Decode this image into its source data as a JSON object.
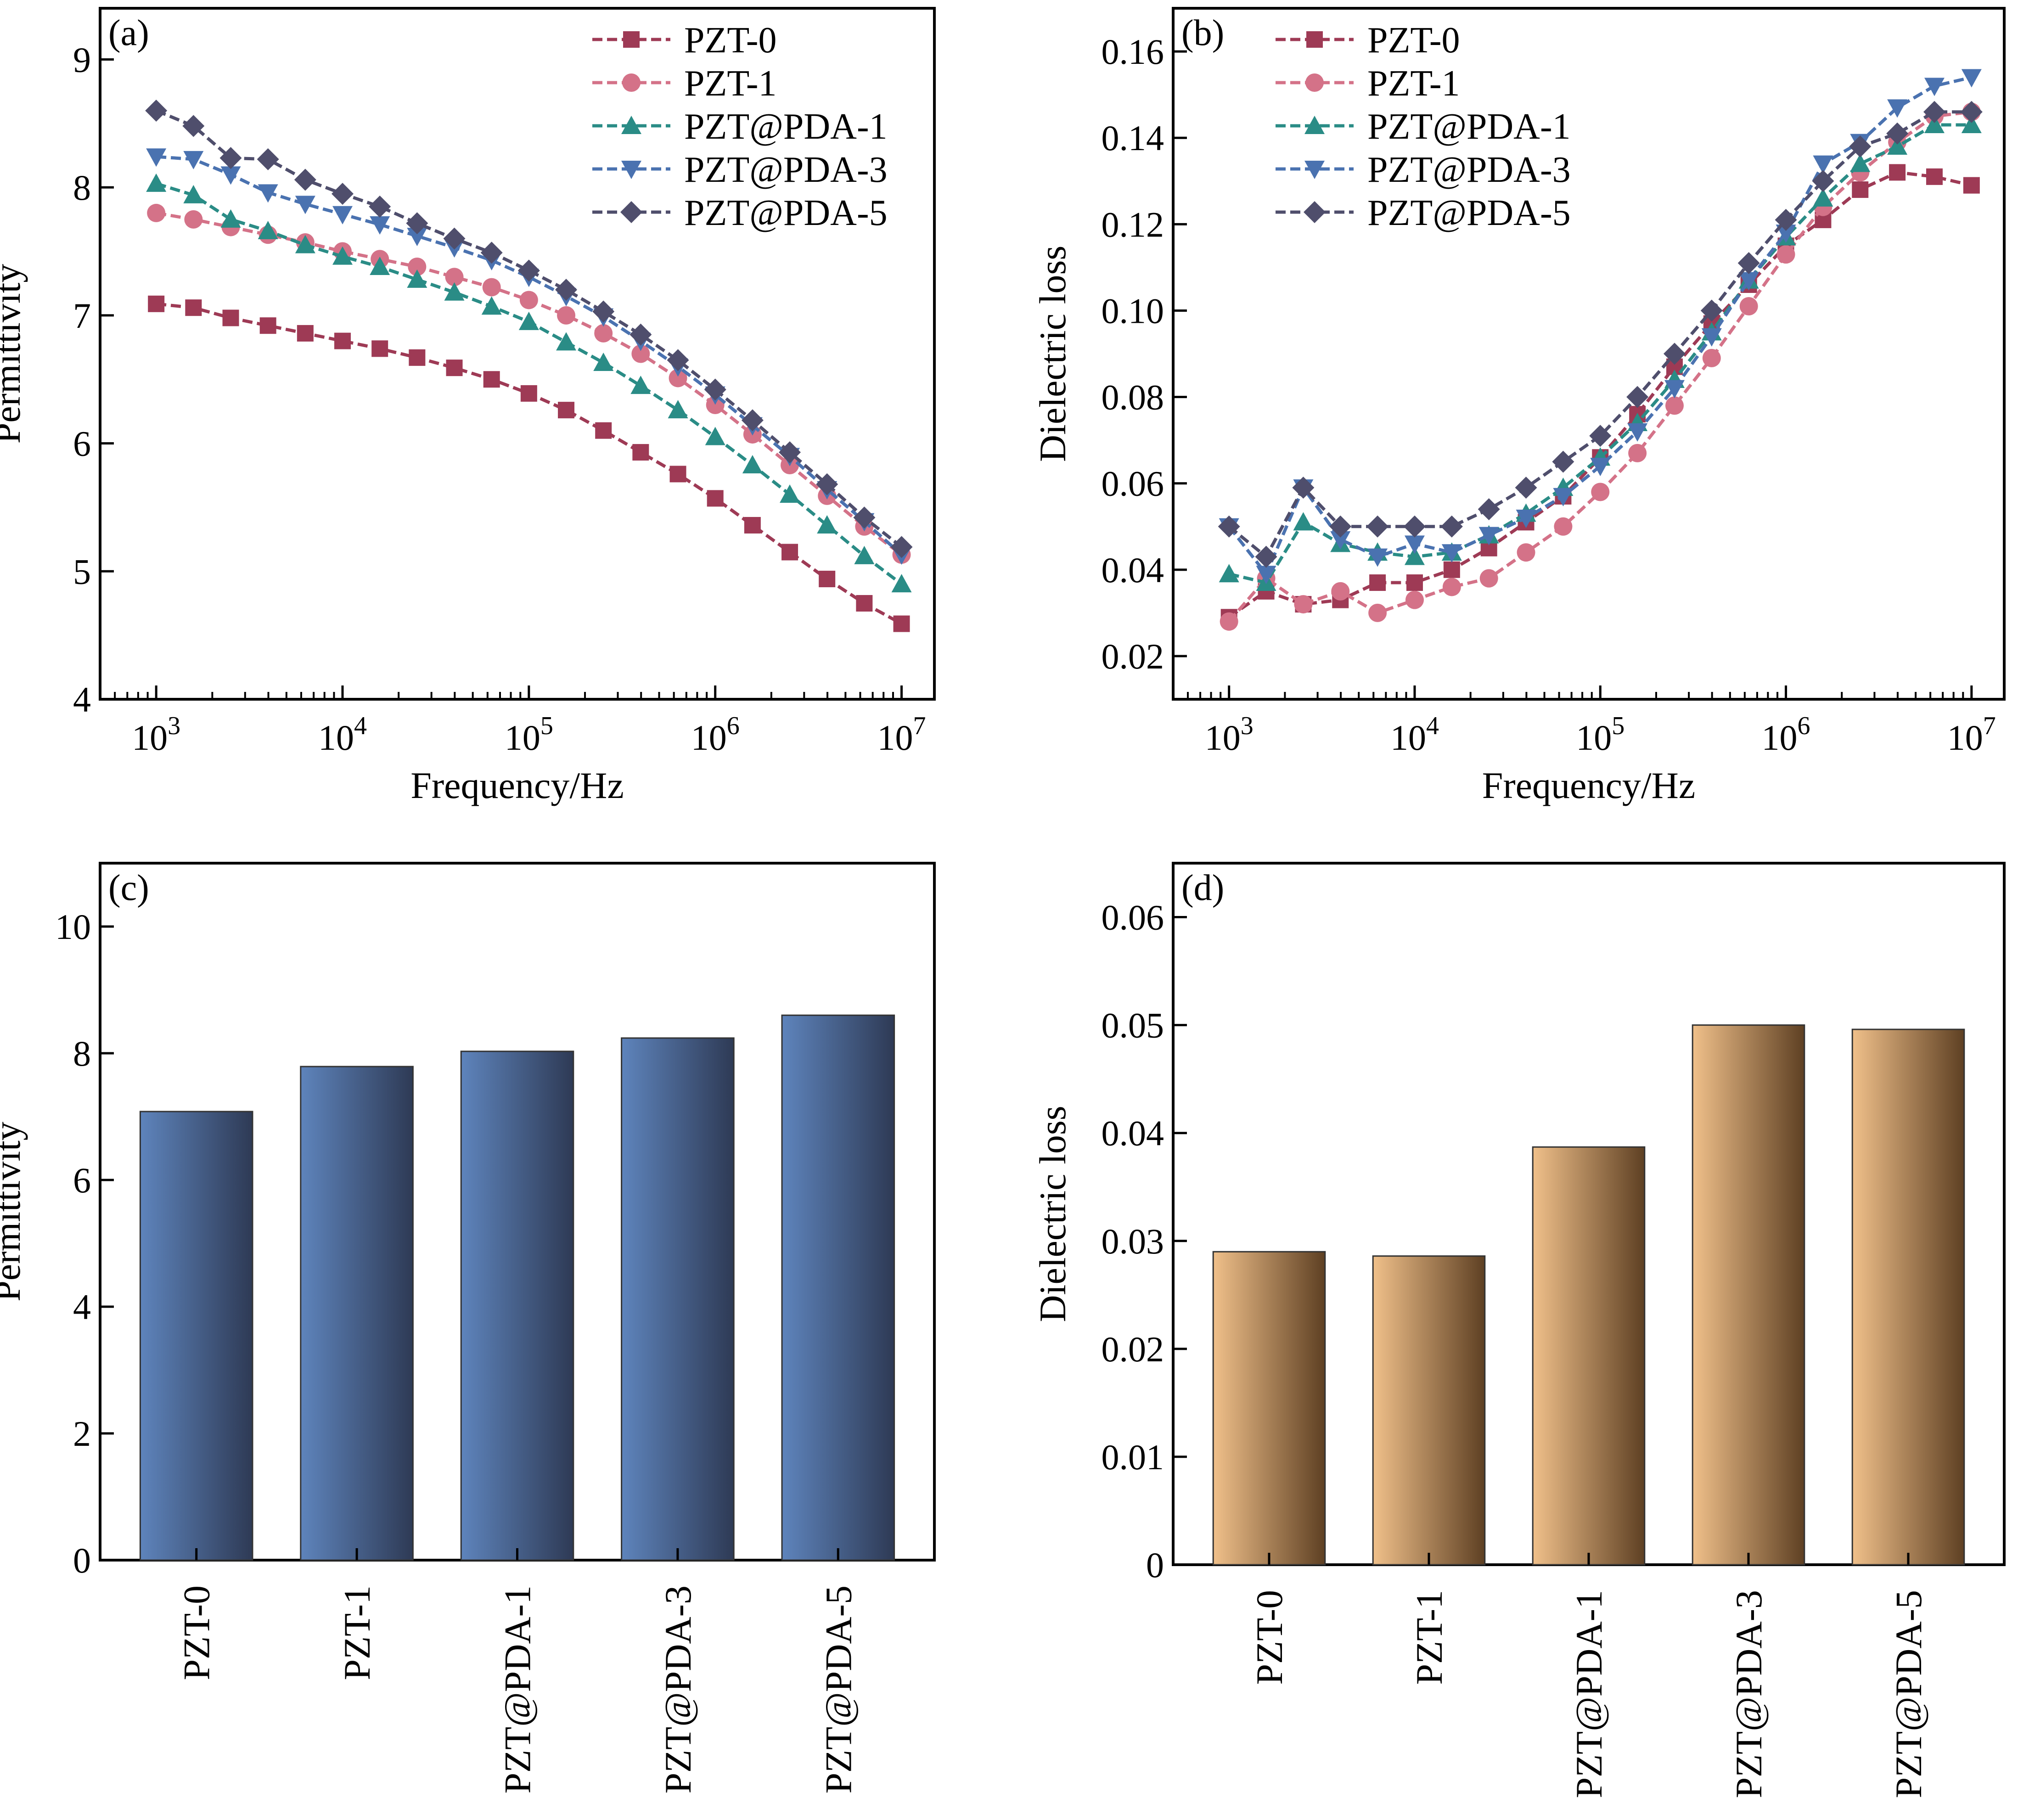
{
  "figure": {
    "panels": [
      "(a)",
      "(b)",
      "(c)",
      "(d)"
    ]
  },
  "colors": {
    "PZT-0": "#9e3a55",
    "PZT-1": "#d47288",
    "PZT@PDA-1": "#2a8c86",
    "PZT@PDA-3": "#4a72b0",
    "PZT@PDA-5": "#4f4e6c",
    "bar_blue_light": "#5e84bc",
    "bar_blue_dark": "#2e3a55",
    "bar_tan_light": "#f0c08a",
    "bar_tan_dark": "#5e4023"
  },
  "chart_data": [
    {
      "panel": "(a)",
      "type": "line",
      "xscale": "log",
      "xlabel": "Frequency/Hz",
      "ylabel": "Permittivity",
      "xlim": [
        500,
        15000000
      ],
      "ylim": [
        4,
        9.4
      ],
      "yticks": [
        4,
        5,
        6,
        7,
        8,
        9
      ],
      "xticks": [
        {
          "value": 1000,
          "base": "10",
          "exp": "3"
        },
        {
          "value": 10000,
          "base": "10",
          "exp": "4"
        },
        {
          "value": 100000,
          "base": "10",
          "exp": "5"
        },
        {
          "value": 1000000,
          "base": "10",
          "exp": "6"
        },
        {
          "value": 10000000,
          "base": "10",
          "exp": "7"
        }
      ],
      "legend_position": "top-right",
      "x": [
        1000,
        1585,
        2512,
        3981,
        6310,
        10000,
        15850,
        25120,
        39810,
        63100,
        100000,
        158500,
        251200,
        398100,
        631000,
        1000000,
        1585000,
        2512000,
        3981000,
        6310000,
        10000000
      ],
      "series": [
        {
          "name": "PZT-0",
          "marker": "square",
          "values": [
            7.09,
            7.06,
            6.98,
            6.92,
            6.86,
            6.8,
            6.74,
            6.67,
            6.59,
            6.5,
            6.39,
            6.26,
            6.1,
            5.93,
            5.76,
            5.57,
            5.36,
            5.15,
            4.94,
            4.75,
            4.59
          ]
        },
        {
          "name": "PZT-1",
          "marker": "circle",
          "values": [
            7.8,
            7.75,
            7.69,
            7.63,
            7.57,
            7.5,
            7.44,
            7.38,
            7.3,
            7.22,
            7.12,
            7.0,
            6.86,
            6.7,
            6.51,
            6.3,
            6.07,
            5.83,
            5.59,
            5.35,
            5.13
          ]
        },
        {
          "name": "PZT@PDA-1",
          "marker": "triangle-up",
          "values": [
            8.03,
            7.94,
            7.75,
            7.66,
            7.55,
            7.46,
            7.38,
            7.28,
            7.18,
            7.07,
            6.95,
            6.79,
            6.63,
            6.45,
            6.26,
            6.05,
            5.83,
            5.6,
            5.36,
            5.12,
            4.9
          ]
        },
        {
          "name": "PZT@PDA-3",
          "marker": "triangle-down",
          "values": [
            8.24,
            8.22,
            8.1,
            7.96,
            7.87,
            7.79,
            7.71,
            7.62,
            7.53,
            7.43,
            7.3,
            7.15,
            6.99,
            6.8,
            6.6,
            6.38,
            6.14,
            5.9,
            5.64,
            5.39,
            5.13
          ]
        },
        {
          "name": "PZT@PDA-5",
          "marker": "diamond",
          "values": [
            8.6,
            8.48,
            8.23,
            8.22,
            8.06,
            7.95,
            7.85,
            7.72,
            7.6,
            7.49,
            7.35,
            7.2,
            7.03,
            6.85,
            6.65,
            6.42,
            6.18,
            5.93,
            5.68,
            5.42,
            5.19
          ]
        }
      ]
    },
    {
      "panel": "(b)",
      "type": "line",
      "xscale": "log",
      "xlabel": "Frequency/Hz",
      "ylabel": "Dielectric loss",
      "xlim": [
        500,
        15000000
      ],
      "ylim": [
        0.01,
        0.17
      ],
      "yticks": [
        "0.02",
        "0.04",
        "0.06",
        "0.08",
        "0.10",
        "0.12",
        "0.14",
        "0.16"
      ],
      "xticks": [
        {
          "value": 1000,
          "base": "10",
          "exp": "3"
        },
        {
          "value": 10000,
          "base": "10",
          "exp": "4"
        },
        {
          "value": 100000,
          "base": "10",
          "exp": "5"
        },
        {
          "value": 1000000,
          "base": "10",
          "exp": "6"
        },
        {
          "value": 10000000,
          "base": "10",
          "exp": "7"
        }
      ],
      "legend_position": "top-left",
      "x": [
        1000,
        1585,
        2512,
        3981,
        6310,
        10000,
        15850,
        25120,
        39810,
        63100,
        100000,
        158500,
        251200,
        398100,
        631000,
        1000000,
        1585000,
        2512000,
        3981000,
        6310000,
        10000000
      ],
      "series": [
        {
          "name": "PZT-0",
          "marker": "square",
          "values": [
            0.029,
            0.035,
            0.032,
            0.033,
            0.037,
            0.037,
            0.04,
            0.045,
            0.051,
            0.057,
            0.066,
            0.076,
            0.087,
            0.097,
            0.106,
            0.115,
            0.121,
            0.128,
            0.132,
            0.131,
            0.129
          ]
        },
        {
          "name": "PZT-1",
          "marker": "circle",
          "values": [
            0.028,
            0.038,
            0.032,
            0.035,
            0.03,
            0.033,
            0.036,
            0.038,
            0.044,
            0.05,
            0.058,
            0.067,
            0.078,
            0.089,
            0.101,
            0.113,
            0.124,
            0.132,
            0.139,
            0.145,
            0.146
          ]
        },
        {
          "name": "PZT@PDA-1",
          "marker": "triangle-up",
          "values": [
            0.039,
            0.037,
            0.051,
            0.046,
            0.044,
            0.043,
            0.044,
            0.048,
            0.053,
            0.059,
            0.066,
            0.074,
            0.084,
            0.095,
            0.107,
            0.117,
            0.126,
            0.134,
            0.138,
            0.143,
            0.143
          ]
        },
        {
          "name": "PZT@PDA-3",
          "marker": "triangle-down",
          "values": [
            0.05,
            0.039,
            0.059,
            0.047,
            0.043,
            0.046,
            0.044,
            0.048,
            0.052,
            0.057,
            0.064,
            0.072,
            0.082,
            0.094,
            0.107,
            0.118,
            0.134,
            0.139,
            0.147,
            0.152,
            0.154
          ]
        },
        {
          "name": "PZT@PDA-5",
          "marker": "diamond",
          "values": [
            0.05,
            0.043,
            0.059,
            0.05,
            0.05,
            0.05,
            0.05,
            0.054,
            0.059,
            0.065,
            0.071,
            0.08,
            0.09,
            0.1,
            0.111,
            0.121,
            0.13,
            0.138,
            0.141,
            0.146,
            0.146
          ]
        }
      ]
    },
    {
      "panel": "(c)",
      "type": "bar",
      "ylabel": "Permittivity",
      "ylim": [
        0,
        11
      ],
      "yticks": [
        0,
        2,
        4,
        6,
        8,
        10
      ],
      "categories": [
        "PZT-0",
        "PZT-1",
        "PZT@PDA-1",
        "PZT@PDA-3",
        "PZT@PDA-5"
      ],
      "values": [
        7.08,
        7.79,
        8.03,
        8.24,
        8.6
      ]
    },
    {
      "panel": "(d)",
      "type": "bar",
      "ylabel": "Dielectric loss",
      "ylim": [
        0,
        0.065
      ],
      "yticks": [
        "0",
        "0.01",
        "0.02",
        "0.03",
        "0.04",
        "0.05",
        "0.06"
      ],
      "categories": [
        "PZT-0",
        "PZT-1",
        "PZT@PDA-1",
        "PZT@PDA-3",
        "PZT@PDA-5"
      ],
      "values": [
        0.029,
        0.0286,
        0.0387,
        0.05,
        0.0496
      ]
    }
  ]
}
